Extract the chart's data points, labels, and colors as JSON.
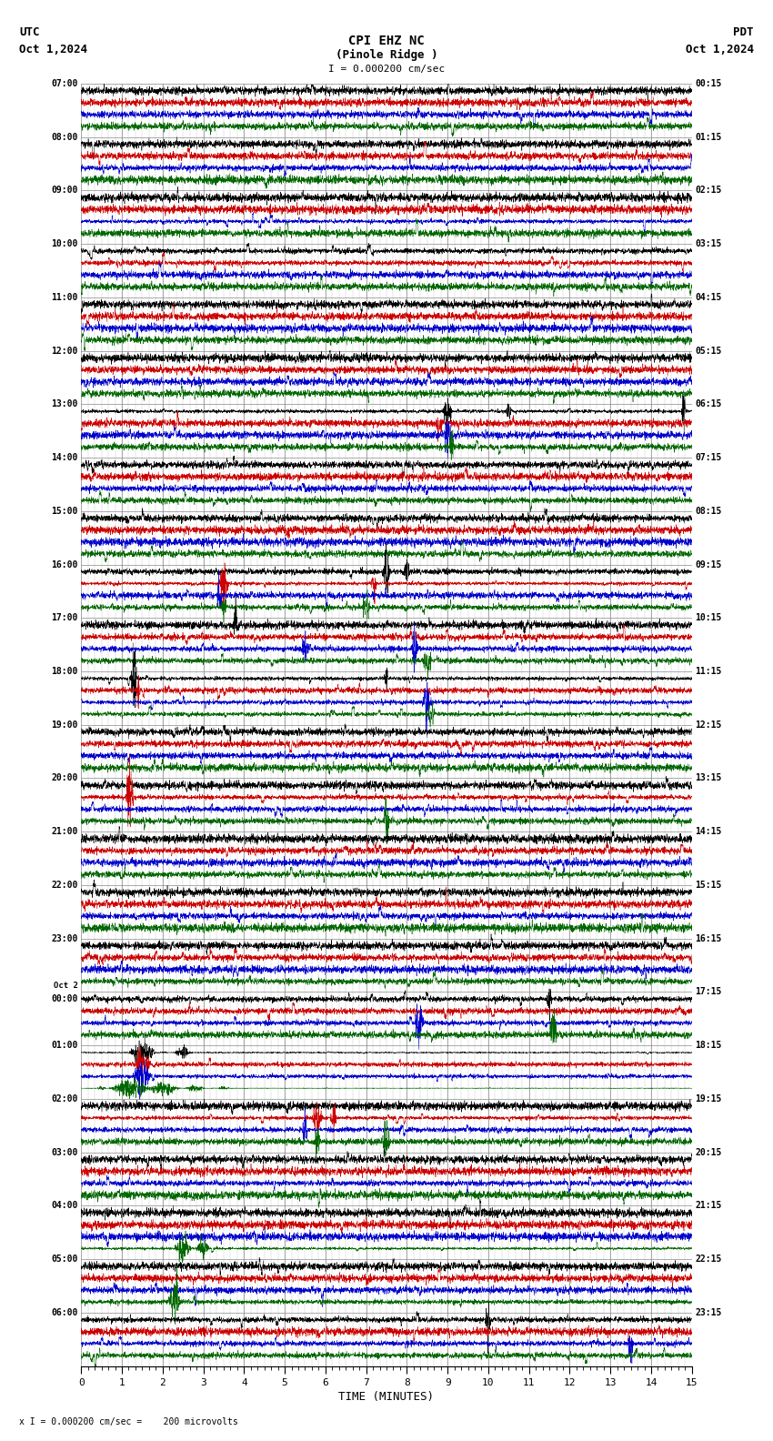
{
  "title_line1": "CPI EHZ NC",
  "title_line2": "(Pinole Ridge )",
  "scale_label": "I = 0.000200 cm/sec",
  "utc_label": "UTC",
  "pdt_label": "PDT",
  "date_left": "Oct 1,2024",
  "date_right": "Oct 1,2024",
  "xlabel": "TIME (MINUTES)",
  "bottom_note": "x I = 0.000200 cm/sec =    200 microvolts",
  "fig_width": 8.5,
  "fig_height": 15.84,
  "bg_color": "#ffffff",
  "grid_color": "#888888",
  "trace_colors": [
    "#000000",
    "#cc0000",
    "#0000cc",
    "#006600"
  ],
  "utc_times_left": [
    "07:00",
    "08:00",
    "09:00",
    "10:00",
    "11:00",
    "12:00",
    "13:00",
    "14:00",
    "15:00",
    "16:00",
    "17:00",
    "18:00",
    "19:00",
    "20:00",
    "21:00",
    "22:00",
    "23:00",
    "Oct 2\n00:00",
    "01:00",
    "02:00",
    "03:00",
    "04:00",
    "05:00",
    "06:00"
  ],
  "pdt_times_right": [
    "00:15",
    "01:15",
    "02:15",
    "03:15",
    "04:15",
    "05:15",
    "06:15",
    "07:15",
    "08:15",
    "09:15",
    "10:15",
    "11:15",
    "12:15",
    "13:15",
    "14:15",
    "15:15",
    "16:15",
    "17:15",
    "18:15",
    "19:15",
    "20:15",
    "21:15",
    "22:15",
    "23:15"
  ],
  "n_rows": 24,
  "traces_per_row": 4,
  "xmin": 0,
  "xmax": 15,
  "noise_seed": 42
}
